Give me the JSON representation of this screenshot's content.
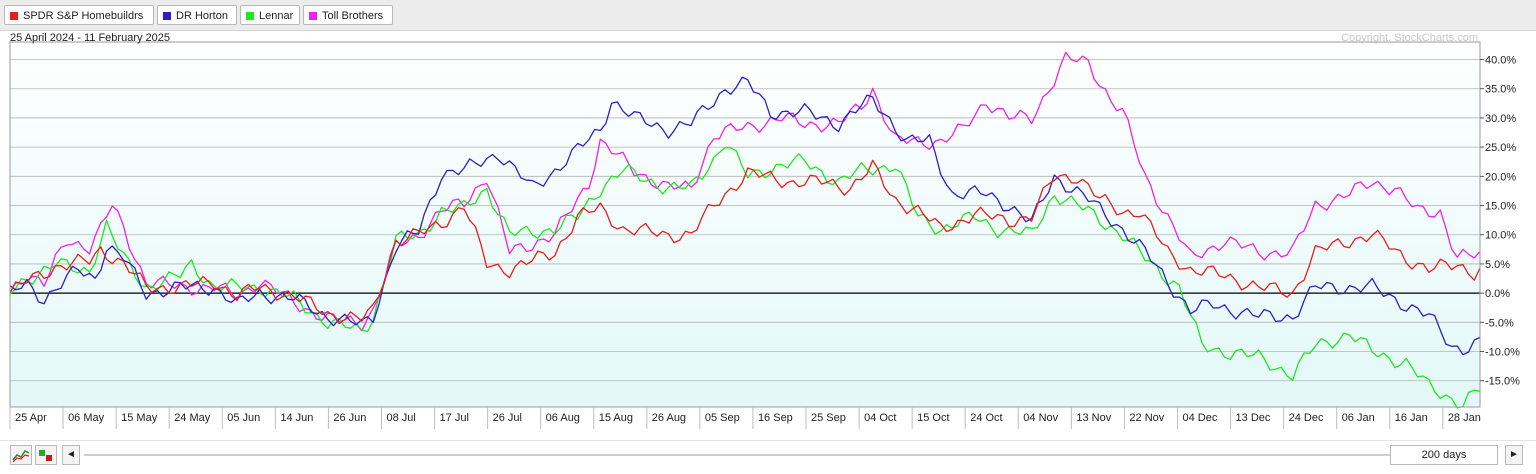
{
  "legend": [
    {
      "name": "SPDR S&P Homebuildrs",
      "color": "#e81e1e"
    },
    {
      "name": "DR Horton",
      "color": "#2d1fc8"
    },
    {
      "name": "Lennar",
      "color": "#1ee81e"
    },
    {
      "name": "Toll Brothers",
      "color": "#f020f0"
    }
  ],
  "subtitle": "25 April 2024 - 11 February 2025",
  "copyright": "Copyright, StockCharts.com",
  "controls": {
    "prev_arrow": "◄",
    "next_arrow": "►",
    "period": "200 days"
  },
  "chart_data": {
    "type": "line",
    "xticks": [
      "25 Apr",
      "06 May",
      "15 May",
      "24 May",
      "05 Jun",
      "14 Jun",
      "26 Jun",
      "08 Jul",
      "17 Jul",
      "26 Jul",
      "06 Aug",
      "15 Aug",
      "26 Aug",
      "05 Sep",
      "16 Sep",
      "25 Sep",
      "04 Oct",
      "15 Oct",
      "24 Oct",
      "04 Nov",
      "13 Nov",
      "22 Nov",
      "04 Dec",
      "13 Dec",
      "24 Dec",
      "06 Jan",
      "16 Jan",
      "28 Jan"
    ],
    "yticks": [
      "40.0%",
      "35.0%",
      "30.0%",
      "25.0%",
      "20.0%",
      "15.0%",
      "10.0%",
      "5.0%",
      "0.0%",
      "-5.0%",
      "-10.0%",
      "-15.0%"
    ],
    "yvalues": [
      40,
      35,
      30,
      25,
      20,
      15,
      10,
      5,
      0,
      -5,
      -10,
      -15
    ],
    "ylim": [
      -19.5,
      43
    ],
    "x_count": 200,
    "grid": true,
    "series": [
      {
        "name": "SPDR S&P Homebuildrs",
        "color": "#e81e1e",
        "anchors": [
          [
            0,
            0
          ],
          [
            3,
            2
          ],
          [
            8,
            4.5
          ],
          [
            14,
            5.5
          ],
          [
            16,
            7.5
          ],
          [
            20,
            5
          ],
          [
            24,
            1
          ],
          [
            30,
            1
          ],
          [
            36,
            2
          ],
          [
            40,
            -0.5
          ],
          [
            44,
            1
          ],
          [
            50,
            -0.5
          ],
          [
            56,
            -3.5
          ],
          [
            62,
            -4.5
          ],
          [
            64,
            -3
          ],
          [
            68,
            9
          ],
          [
            72,
            10
          ],
          [
            76,
            12
          ],
          [
            80,
            15
          ],
          [
            84,
            5
          ],
          [
            88,
            4
          ],
          [
            96,
            7
          ],
          [
            100,
            13
          ],
          [
            104,
            14.5
          ],
          [
            108,
            11
          ],
          [
            116,
            10
          ],
          [
            120,
            10
          ],
          [
            124,
            15
          ],
          [
            126,
            17
          ],
          [
            130,
            20.5
          ],
          [
            138,
            19
          ],
          [
            144,
            19
          ],
          [
            148,
            18
          ],
          [
            152,
            21.5
          ],
          [
            156,
            16
          ],
          [
            160,
            14
          ],
          [
            164,
            11
          ],
          [
            170,
            13.5
          ],
          [
            176,
            12.5
          ],
          [
            180,
            13
          ],
          [
            184,
            20
          ],
          [
            188,
            20
          ],
          [
            192,
            16
          ],
          [
            196,
            14
          ],
          [
            199,
            14
          ],
          [
            204,
            7
          ],
          [
            208,
            4
          ],
          [
            214,
            3
          ],
          [
            220,
            1
          ],
          [
            226,
            0
          ],
          [
            230,
            7
          ],
          [
            236,
            9
          ],
          [
            240,
            10
          ],
          [
            246,
            6
          ],
          [
            250,
            4
          ],
          [
            255,
            5
          ],
          [
            258,
            3.5
          ],
          [
            259,
            4
          ]
        ]
      },
      {
        "name": "DR Horton",
        "color": "#2d1fc8",
        "anchors": [
          [
            0,
            0
          ],
          [
            3,
            1.5
          ],
          [
            6,
            -1
          ],
          [
            12,
            4
          ],
          [
            15,
            2.5
          ],
          [
            17,
            8
          ],
          [
            20,
            6
          ],
          [
            24,
            0
          ],
          [
            30,
            1
          ],
          [
            36,
            1
          ],
          [
            40,
            -2
          ],
          [
            44,
            0
          ],
          [
            50,
            -1
          ],
          [
            56,
            -4
          ],
          [
            62,
            -5.5
          ],
          [
            64,
            -4
          ],
          [
            68,
            8
          ],
          [
            72,
            10.5
          ],
          [
            76,
            20.5
          ],
          [
            80,
            21
          ],
          [
            86,
            24
          ],
          [
            88,
            22
          ],
          [
            92,
            18
          ],
          [
            96,
            21
          ],
          [
            104,
            28
          ],
          [
            106,
            33
          ],
          [
            110,
            30
          ],
          [
            116,
            28
          ],
          [
            120,
            29
          ],
          [
            126,
            35
          ],
          [
            130,
            36
          ],
          [
            134,
            31
          ],
          [
            140,
            31
          ],
          [
            146,
            29
          ],
          [
            150,
            32
          ],
          [
            152,
            33
          ],
          [
            154,
            31
          ],
          [
            158,
            26
          ],
          [
            162,
            26
          ],
          [
            166,
            17
          ],
          [
            172,
            17
          ],
          [
            176,
            15
          ],
          [
            180,
            12
          ],
          [
            184,
            20
          ],
          [
            190,
            16
          ],
          [
            196,
            11
          ],
          [
            200,
            7
          ],
          [
            204,
            2
          ],
          [
            208,
            -3
          ],
          [
            212,
            -2
          ],
          [
            220,
            -4
          ],
          [
            226,
            -4
          ],
          [
            230,
            1
          ],
          [
            236,
            1
          ],
          [
            240,
            1
          ],
          [
            246,
            -2
          ],
          [
            250,
            -4
          ],
          [
            254,
            -9
          ],
          [
            256,
            -9.5
          ],
          [
            259,
            -8.5
          ]
        ]
      },
      {
        "name": "Lennar",
        "color": "#1ee81e",
        "anchors": [
          [
            0,
            0
          ],
          [
            3,
            2.5
          ],
          [
            8,
            5
          ],
          [
            12,
            4
          ],
          [
            14,
            4
          ],
          [
            17,
            11.5
          ],
          [
            20,
            6
          ],
          [
            24,
            1
          ],
          [
            30,
            3
          ],
          [
            32,
            5
          ],
          [
            36,
            1
          ],
          [
            44,
            1
          ],
          [
            50,
            -1
          ],
          [
            56,
            -5
          ],
          [
            62,
            -6.5
          ],
          [
            64,
            -4
          ],
          [
            68,
            9
          ],
          [
            72,
            10
          ],
          [
            76,
            14
          ],
          [
            80,
            14.5
          ],
          [
            84,
            18
          ],
          [
            88,
            10
          ],
          [
            96,
            11
          ],
          [
            100,
            13
          ],
          [
            104,
            18
          ],
          [
            108,
            21
          ],
          [
            116,
            18
          ],
          [
            120,
            18
          ],
          [
            124,
            23
          ],
          [
            126,
            26
          ],
          [
            130,
            20
          ],
          [
            136,
            22
          ],
          [
            140,
            22.5
          ],
          [
            146,
            19
          ],
          [
            150,
            21
          ],
          [
            156,
            22
          ],
          [
            160,
            13
          ],
          [
            164,
            11
          ],
          [
            170,
            13
          ],
          [
            174,
            11
          ],
          [
            180,
            10
          ],
          [
            184,
            17
          ],
          [
            190,
            14
          ],
          [
            196,
            10
          ],
          [
            200,
            6
          ],
          [
            206,
            1
          ],
          [
            210,
            -9
          ],
          [
            214,
            -10
          ],
          [
            220,
            -11
          ],
          [
            226,
            -14
          ],
          [
            230,
            -9
          ],
          [
            236,
            -7
          ],
          [
            240,
            -10
          ],
          [
            246,
            -12
          ],
          [
            250,
            -16
          ],
          [
            256,
            -19
          ],
          [
            259,
            -16.5
          ]
        ]
      },
      {
        "name": "Toll Brothers",
        "color": "#f020f0",
        "anchors": [
          [
            0,
            0
          ],
          [
            3,
            3.5
          ],
          [
            6,
            1.5
          ],
          [
            10,
            9
          ],
          [
            14,
            8
          ],
          [
            16,
            11
          ],
          [
            18,
            15
          ],
          [
            20,
            11
          ],
          [
            24,
            2
          ],
          [
            30,
            1
          ],
          [
            36,
            1
          ],
          [
            40,
            -0.5
          ],
          [
            44,
            2
          ],
          [
            50,
            -1.5
          ],
          [
            56,
            -4.5
          ],
          [
            62,
            -5
          ],
          [
            64,
            -3
          ],
          [
            68,
            8
          ],
          [
            72,
            10
          ],
          [
            76,
            14
          ],
          [
            80,
            15.5
          ],
          [
            84,
            20
          ],
          [
            88,
            7
          ],
          [
            96,
            10
          ],
          [
            102,
            19
          ],
          [
            104,
            26
          ],
          [
            110,
            21
          ],
          [
            116,
            18
          ],
          [
            120,
            18
          ],
          [
            124,
            27
          ],
          [
            128,
            28
          ],
          [
            132,
            29
          ],
          [
            136,
            30
          ],
          [
            140,
            29
          ],
          [
            146,
            29
          ],
          [
            150,
            32
          ],
          [
            152,
            35
          ],
          [
            156,
            26
          ],
          [
            160,
            26
          ],
          [
            164,
            26
          ],
          [
            168,
            28
          ],
          [
            172,
            33
          ],
          [
            176,
            30
          ],
          [
            180,
            30
          ],
          [
            186,
            40
          ],
          [
            190,
            39.5
          ],
          [
            194,
            33
          ],
          [
            196,
            31
          ],
          [
            200,
            20
          ],
          [
            204,
            13
          ],
          [
            208,
            6
          ],
          [
            214,
            9
          ],
          [
            220,
            7
          ],
          [
            226,
            7
          ],
          [
            230,
            15
          ],
          [
            236,
            17
          ],
          [
            240,
            19
          ],
          [
            244,
            18
          ],
          [
            248,
            14
          ],
          [
            252,
            14
          ],
          [
            255,
            6
          ],
          [
            259,
            6.5
          ]
        ]
      }
    ]
  }
}
